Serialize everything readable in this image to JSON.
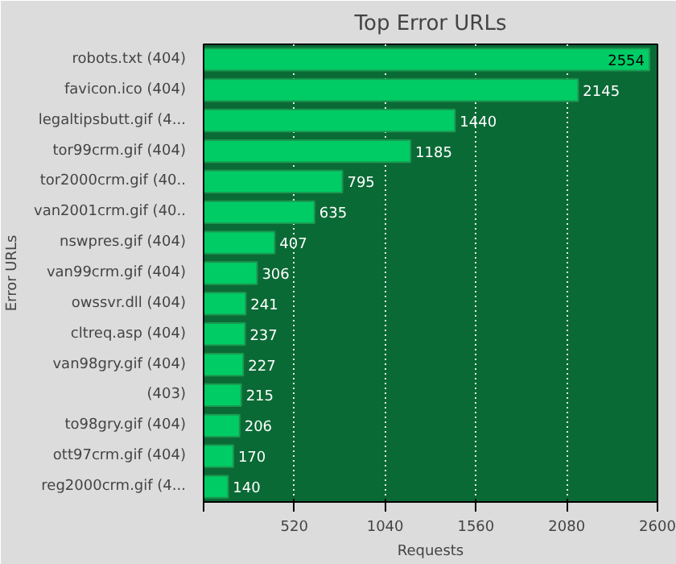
{
  "chart_data": {
    "type": "bar",
    "orientation": "horizontal",
    "title": "Top Error URLs",
    "xlabel": "Requests",
    "ylabel": "Error URLs",
    "categories": [
      "robots.txt (404)",
      "favicon.ico (404)",
      "legaltipsbutt.gif (4...",
      "tor99crm.gif (404)",
      "tor2000crm.gif (40..",
      "van2001crm.gif (40..",
      "nswpres.gif (404)",
      "van99crm.gif (404)",
      "owssvr.dll (404)",
      "cltreq.asp (404)",
      "van98gry.gif (404)",
      "(403)",
      "to98gry.gif (404)",
      "ott97crm.gif (404)",
      "reg2000crm.gif (4..."
    ],
    "values": [
      2554,
      2145,
      1440,
      1185,
      795,
      635,
      407,
      306,
      241,
      237,
      227,
      215,
      206,
      170,
      140
    ],
    "color": "#00cc66",
    "data_labels": true,
    "xlim": [
      0,
      2600
    ],
    "xticks": [
      {
        "value": 0,
        "label": null
      },
      520,
      1040,
      1560,
      2080,
      2600
    ],
    "grid": "x"
  }
}
